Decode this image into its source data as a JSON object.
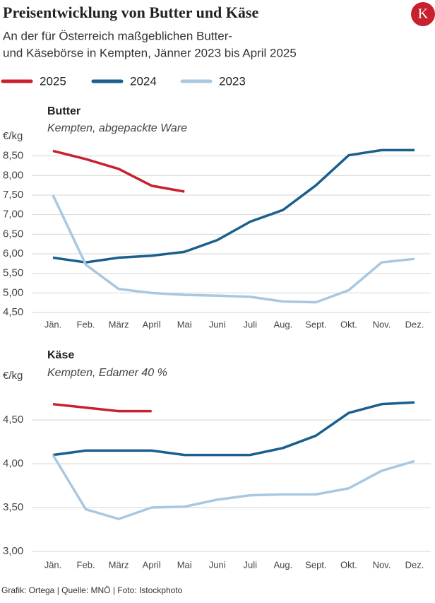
{
  "title": "Preisentwicklung von Butter und Käse",
  "subtitle": [
    "An der für Österreich maßgeblichen Butter-",
    "und Käsebörse in Kempten, Jänner 2023 bis April 2025"
  ],
  "logo": "K",
  "source": "Grafik: Ortega | Quelle: MNÖ | Foto: Istockphoto",
  "chart_data": [
    {
      "type": "line",
      "title": "Butter",
      "subtitle": "Kempten, abgepackte Ware",
      "y_label": "€/kg",
      "categories": [
        "Jän.",
        "Feb.",
        "März",
        "April",
        "Mai",
        "Juni",
        "Juli",
        "Aug.",
        "Sept.",
        "Okt.",
        "Nov.",
        "Dez."
      ],
      "ylim": [
        4.5,
        9.0
      ],
      "yticks": [
        {
          "value": 4.5,
          "label": "4,50"
        },
        {
          "value": 5.0,
          "label": "5,00"
        },
        {
          "value": 5.5,
          "label": "5,50"
        },
        {
          "value": 6.0,
          "label": "6,00"
        },
        {
          "value": 6.5,
          "label": "6,50"
        },
        {
          "value": 7.0,
          "label": "7,00"
        },
        {
          "value": 7.5,
          "label": "7,50"
        },
        {
          "value": 8.0,
          "label": "8,00"
        },
        {
          "value": 8.5,
          "label": "8,50"
        }
      ],
      "grid": true,
      "series": [
        {
          "name": "2025",
          "color": "#c8202f",
          "values": [
            8.63,
            8.42,
            8.17,
            7.74,
            7.59,
            null,
            null,
            null,
            null,
            null,
            null,
            null
          ]
        },
        {
          "name": "2024",
          "color": "#1a5f8e",
          "values": [
            5.9,
            5.78,
            5.9,
            5.95,
            6.05,
            6.35,
            6.82,
            7.12,
            7.75,
            8.52,
            8.65,
            8.65
          ]
        },
        {
          "name": "2023",
          "color": "#a9c8e0",
          "values": [
            7.5,
            5.72,
            5.1,
            5.0,
            4.95,
            4.93,
            4.9,
            4.78,
            4.76,
            5.07,
            5.78,
            5.87
          ]
        }
      ]
    },
    {
      "type": "line",
      "title": "Käse",
      "subtitle": "Kempten, Edamer 40 %",
      "y_label": "€/kg",
      "categories": [
        "Jän.",
        "Feb.",
        "März",
        "April",
        "Mai",
        "Juni",
        "Juli",
        "Aug.",
        "Sept.",
        "Okt.",
        "Nov.",
        "Dez."
      ],
      "ylim": [
        3.0,
        5.0
      ],
      "yticks": [
        {
          "value": 3.0,
          "label": "3,00"
        },
        {
          "value": 3.5,
          "label": "3,50"
        },
        {
          "value": 4.0,
          "label": "4,00"
        },
        {
          "value": 4.5,
          "label": "4,50"
        }
      ],
      "grid": true,
      "series": [
        {
          "name": "2025",
          "color": "#c8202f",
          "values": [
            4.68,
            4.64,
            4.6,
            4.6,
            null,
            null,
            null,
            null,
            null,
            null,
            null,
            null
          ]
        },
        {
          "name": "2024",
          "color": "#1a5f8e",
          "values": [
            4.1,
            4.15,
            4.15,
            4.15,
            4.1,
            4.1,
            4.1,
            4.18,
            4.32,
            4.58,
            4.68,
            4.7
          ]
        },
        {
          "name": "2023",
          "color": "#a9c8e0",
          "values": [
            4.1,
            3.48,
            3.37,
            3.5,
            3.51,
            3.59,
            3.64,
            3.65,
            3.65,
            3.72,
            3.92,
            4.03
          ]
        }
      ]
    }
  ]
}
